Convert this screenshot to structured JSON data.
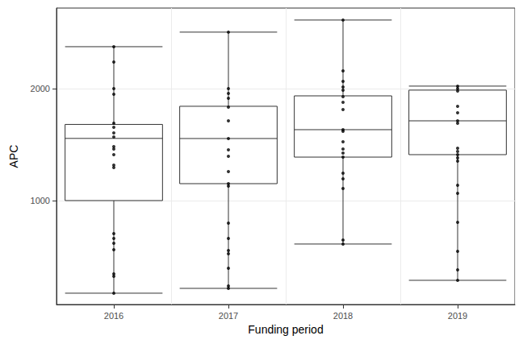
{
  "chart_data": {
    "type": "boxplot",
    "x_label": "Funding period",
    "y_label": "APC",
    "categories": [
      "2016",
      "2017",
      "2018",
      "2019"
    ],
    "boxes": [
      {
        "low": 173,
        "q1": 1000,
        "median": 1555,
        "q3": 1680,
        "high": 2374
      },
      {
        "low": 216,
        "q1": 1151,
        "median": 1554,
        "q3": 1842,
        "high": 2504
      },
      {
        "low": 612,
        "q1": 1388,
        "median": 1633,
        "q3": 1935,
        "high": 2612
      },
      {
        "low": 288,
        "q1": 1410,
        "median": 1712,
        "q3": 1986,
        "high": 2022
      }
    ],
    "points": [
      [
        2374,
        2237,
        2000,
        1950,
        1691,
        1655,
        1604,
        1568,
        1482,
        1460,
        1410,
        1317,
        1295,
        705,
        662,
        619,
        561,
        345,
        324,
        173
      ],
      [
        2504,
        2000,
        1957,
        1914,
        1835,
        1712,
        1554,
        1453,
        1396,
        1259,
        1151,
        1129,
        799,
        662,
        554,
        525,
        396,
        237,
        216
      ],
      [
        2612,
        2158,
        2065,
        2014,
        1986,
        1928,
        1878,
        1813,
        1633,
        1619,
        1525,
        1460,
        1424,
        1388,
        1245,
        1194,
        1108,
        647,
        612
      ],
      [
        2022,
        2000,
        1978,
        1842,
        1784,
        1712,
        1691,
        1468,
        1439,
        1410,
        1381,
        1353,
        1137,
        1065,
        806,
        547,
        381,
        288
      ]
    ],
    "ylim": [
      72,
      2719
    ],
    "yticks": [
      1000,
      2000
    ],
    "grid": true
  }
}
